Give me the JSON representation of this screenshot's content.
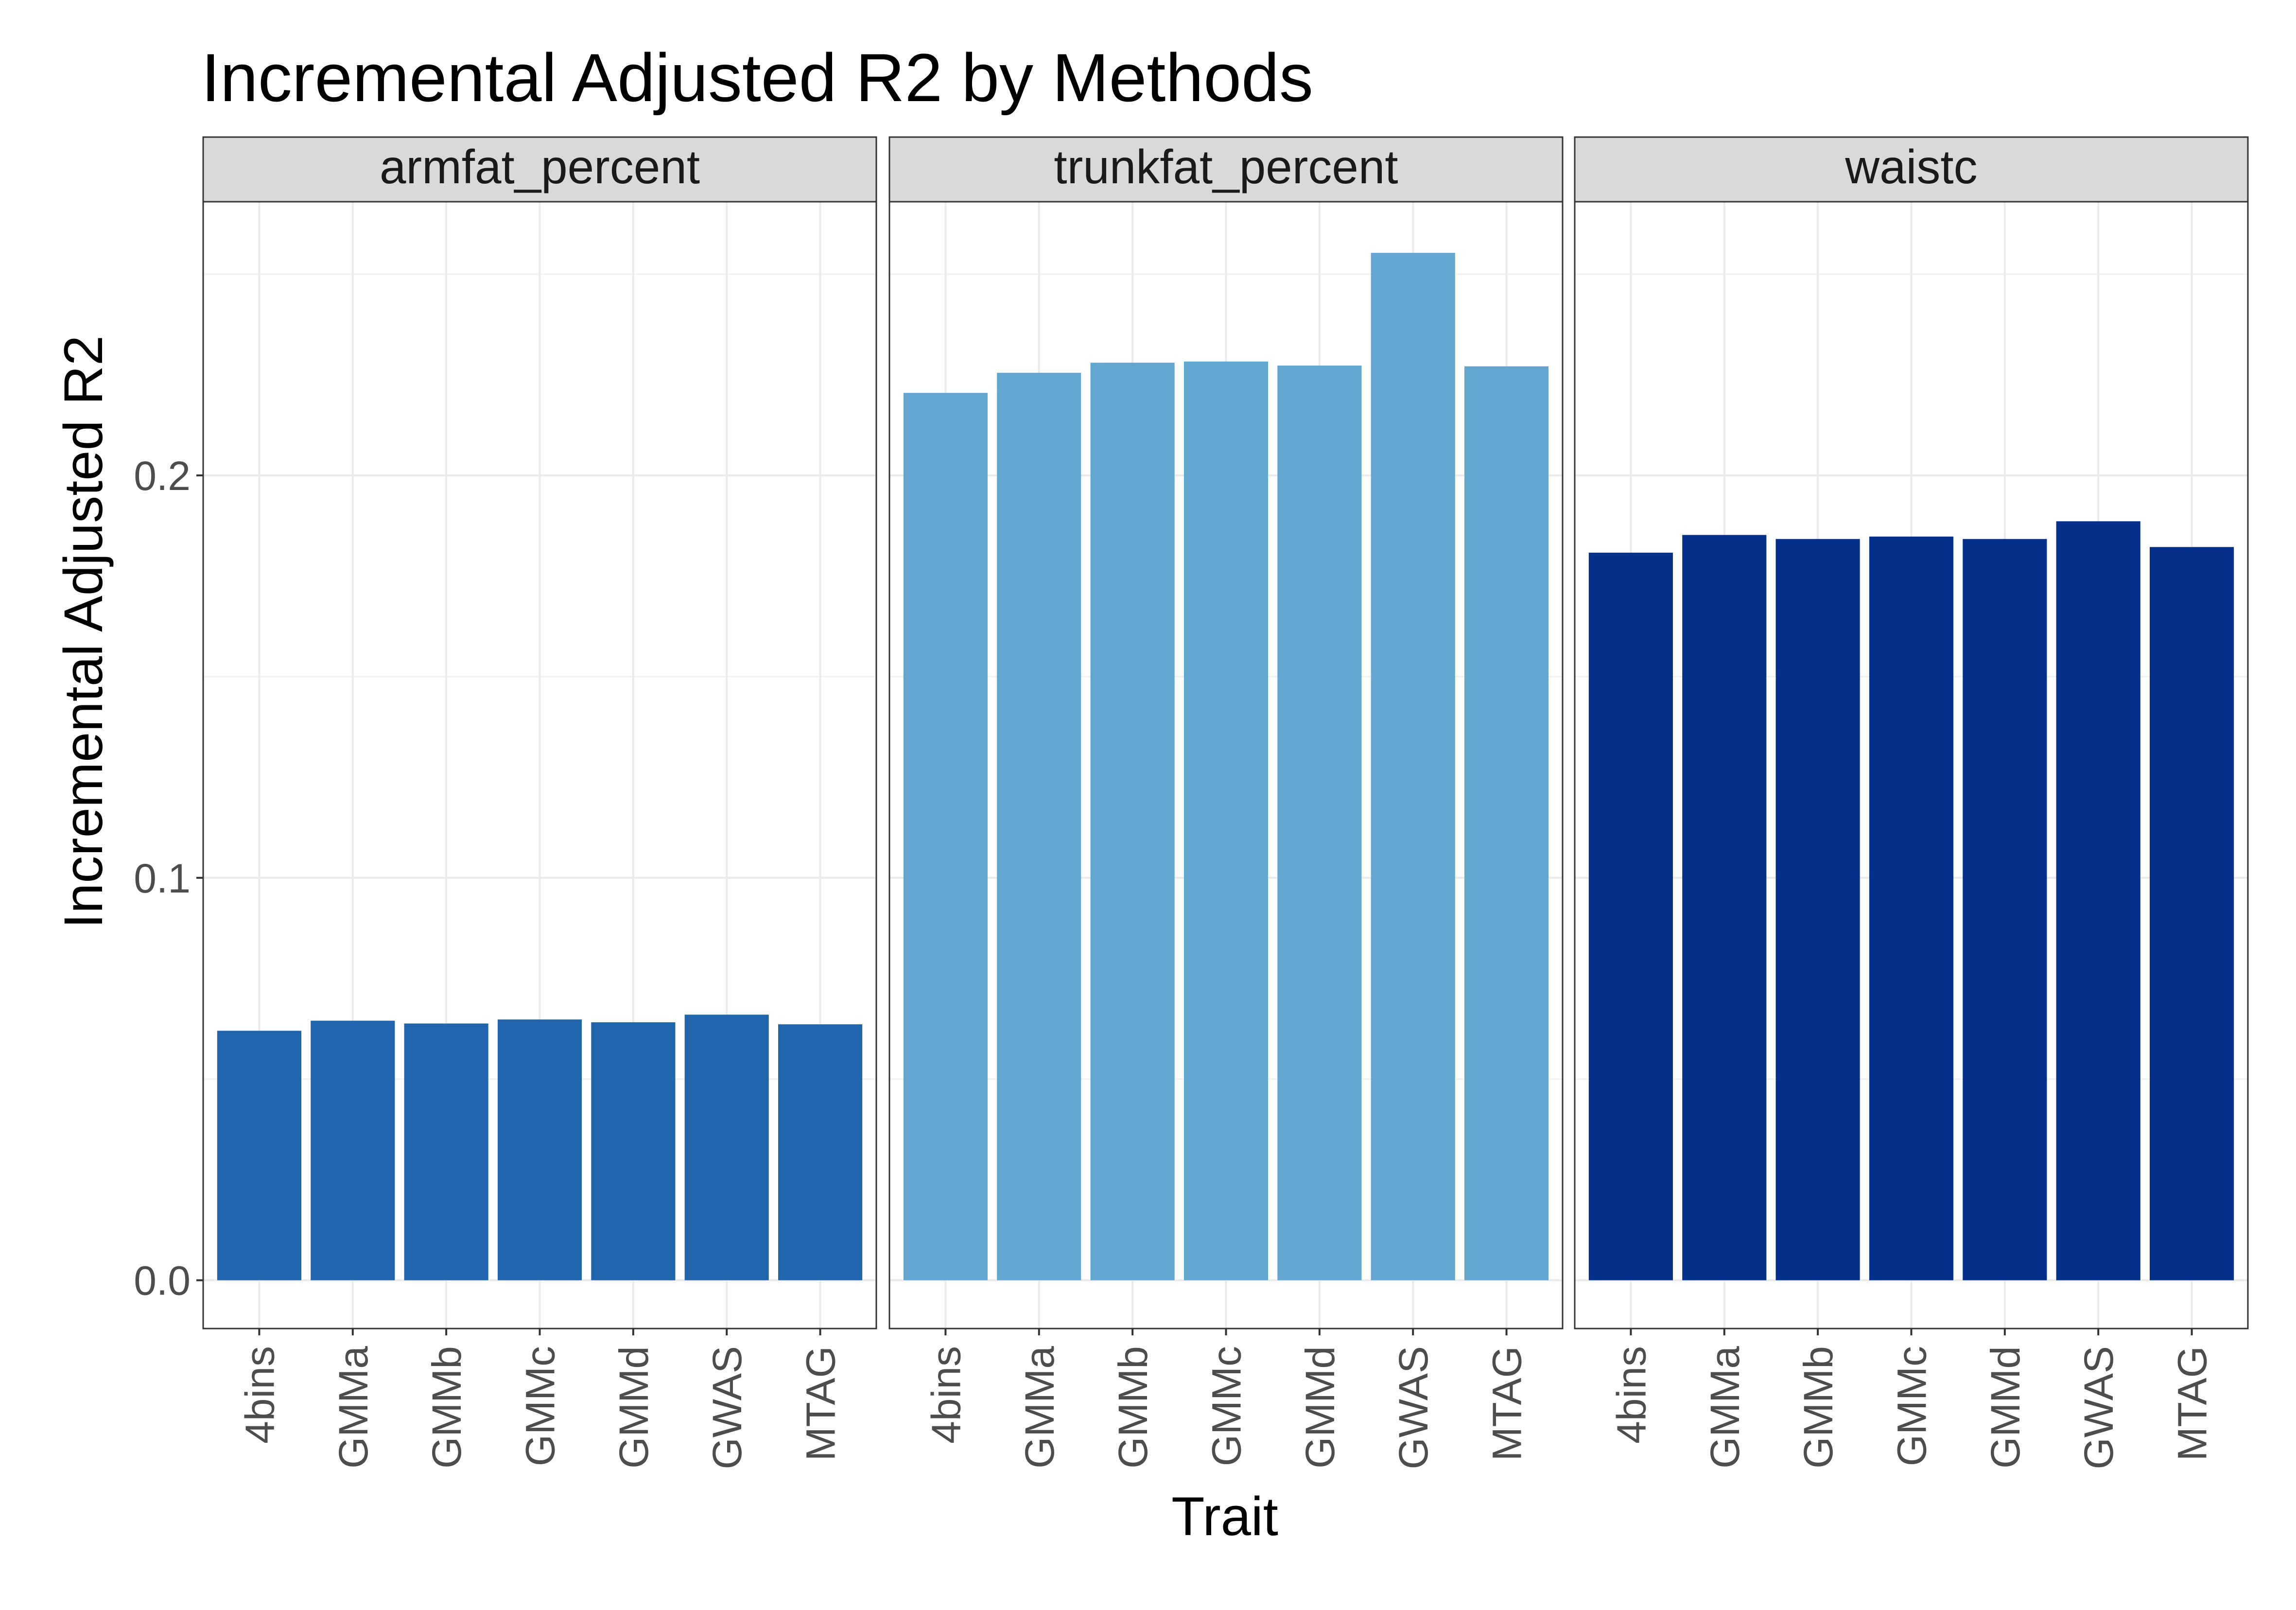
{
  "chart_data": {
    "type": "bar",
    "title": "Incremental Adjusted R2 by Methods",
    "xlabel": "Trait",
    "ylabel": "Incremental Adjusted R2",
    "ylim": [
      -0.012,
      0.268
    ],
    "yticks": [
      0.0,
      0.1,
      0.2
    ],
    "ytick_labels": [
      "0.0",
      "0.1",
      "0.2"
    ],
    "grid": true,
    "legend": "none",
    "categories": [
      "4bins",
      "GMMa",
      "GMMb",
      "GMMc",
      "GMMd",
      "GWAS",
      "MTAG"
    ],
    "panels": [
      {
        "name": "armfat_percent",
        "color": "#2166ac",
        "values": [
          0.062,
          0.0645,
          0.0638,
          0.0648,
          0.0641,
          0.066,
          0.0636
        ]
      },
      {
        "name": "trunkfat_percent",
        "color": "#63a7d1",
        "values": [
          0.2205,
          0.2255,
          0.228,
          0.2283,
          0.2273,
          0.2553,
          0.2271
        ]
      },
      {
        "name": "waistc",
        "color": "#05308c",
        "values": [
          0.1808,
          0.1852,
          0.1842,
          0.1848,
          0.1842,
          0.1886,
          0.1822
        ]
      }
    ]
  }
}
